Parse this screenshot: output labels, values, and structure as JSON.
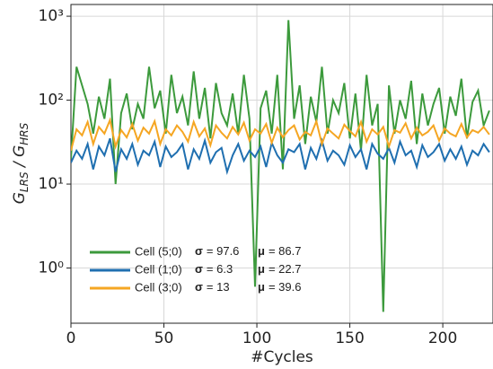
{
  "chart_data": {
    "type": "line",
    "xlabel": "#Cycles",
    "ylabel": [
      "G",
      "LRS",
      " / G",
      "HRS"
    ],
    "log_y": true,
    "grid": true,
    "legend": "lower left",
    "xlim": [
      0,
      227
    ],
    "ylim": [
      0.22,
      1380
    ],
    "xticks": [
      0,
      50,
      100,
      150,
      200
    ],
    "yticks": [
      {
        "value": 1,
        "label": "10⁰"
      },
      {
        "value": 10,
        "label": "10¹"
      },
      {
        "value": 100,
        "label": "10²"
      },
      {
        "value": 1000,
        "label": "10³"
      }
    ],
    "x": [
      0,
      3,
      6,
      9,
      12,
      15,
      18,
      21,
      24,
      27,
      30,
      33,
      36,
      39,
      42,
      45,
      48,
      51,
      54,
      57,
      60,
      63,
      66,
      69,
      72,
      75,
      78,
      81,
      84,
      87,
      90,
      93,
      96,
      99,
      102,
      105,
      108,
      111,
      114,
      117,
      120,
      123,
      126,
      129,
      132,
      135,
      138,
      141,
      144,
      147,
      150,
      153,
      156,
      159,
      162,
      165,
      168,
      171,
      174,
      177,
      180,
      183,
      186,
      189,
      192,
      195,
      198,
      201,
      204,
      207,
      210,
      213,
      216,
      219,
      222,
      225
    ],
    "series": [
      {
        "name": "Cell (5;0)",
        "color": "#3c9a3c",
        "sigma": {
          "symbol": "σ",
          "text": "= 97.6"
        },
        "mu": {
          "symbol": "μ",
          "text": "= 86.7"
        },
        "values": [
          20,
          250,
          150,
          90,
          40,
          110,
          60,
          180,
          10,
          70,
          120,
          45,
          90,
          60,
          250,
          80,
          130,
          40,
          200,
          70,
          110,
          50,
          220,
          60,
          140,
          35,
          160,
          70,
          50,
          120,
          40,
          200,
          60,
          0.6,
          80,
          130,
          40,
          200,
          15,
          900,
          60,
          150,
          30,
          110,
          55,
          250,
          40,
          100,
          70,
          160,
          35,
          120,
          25,
          200,
          50,
          90,
          0.3,
          150,
          40,
          100,
          60,
          170,
          30,
          120,
          50,
          90,
          140,
          40,
          110,
          65,
          180,
          35,
          95,
          130,
          50,
          75
        ]
      },
      {
        "name": "Cell (1;0)",
        "color": "#1f6fb0",
        "sigma": {
          "symbol": "σ",
          "text": "= 6.3"
        },
        "mu": {
          "symbol": "μ",
          "text": "= 22.7"
        },
        "values": [
          18,
          25,
          20,
          30,
          15,
          28,
          22,
          35,
          14,
          26,
          20,
          30,
          17,
          25,
          22,
          32,
          16,
          28,
          21,
          24,
          30,
          15,
          26,
          20,
          33,
          18,
          24,
          27,
          14,
          22,
          30,
          19,
          25,
          21,
          28,
          16,
          31,
          22,
          18,
          26,
          24,
          30,
          15,
          27,
          20,
          33,
          19,
          25,
          22,
          17,
          29,
          21,
          26,
          15,
          30,
          23,
          20,
          27,
          18,
          32,
          22,
          25,
          16,
          29,
          21,
          24,
          30,
          19,
          26,
          20,
          28,
          17,
          25,
          22,
          30,
          24
        ]
      },
      {
        "name": "Cell (3;0)",
        "color": "#f5a623",
        "sigma": {
          "symbol": "σ",
          "text": "= 13"
        },
        "mu": {
          "symbol": "μ",
          "text": "= 39.6"
        },
        "values": [
          25,
          45,
          38,
          55,
          30,
          48,
          40,
          58,
          28,
          44,
          36,
          52,
          33,
          47,
          40,
          56,
          30,
          45,
          38,
          50,
          42,
          32,
          55,
          37,
          46,
          29,
          50,
          41,
          35,
          48,
          39,
          54,
          33,
          45,
          40,
          52,
          31,
          47,
          36,
          44,
          50,
          34,
          42,
          38,
          56,
          30,
          46,
          40,
          35,
          51,
          43,
          37,
          55,
          32,
          45,
          39,
          48,
          28,
          44,
          41,
          53,
          35,
          47,
          38,
          42,
          50,
          33,
          46,
          40,
          37,
          52,
          36,
          44,
          41,
          48,
          39
        ]
      }
    ]
  }
}
